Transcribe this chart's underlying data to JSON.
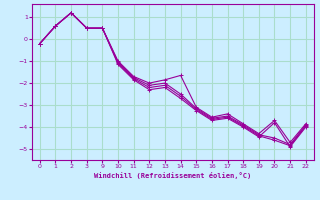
{
  "xlabel": "Windchill (Refroidissement éolien,°C)",
  "background_color": "#cceeff",
  "grid_color": "#aaddcc",
  "line_color": "#990099",
  "xlim": [
    -0.5,
    17.5
  ],
  "ylim": [
    -5.5,
    1.6
  ],
  "xtick_positions": [
    0,
    1,
    2,
    3,
    4,
    5,
    6,
    7,
    8,
    9,
    10,
    11,
    12,
    13,
    14,
    15,
    16,
    17
  ],
  "xtick_labels": [
    "0",
    "1",
    "2",
    "3",
    "9",
    "10",
    "11",
    "12",
    "13",
    "14",
    "15",
    "16",
    "17",
    "18",
    "19",
    "20",
    "21",
    "22"
  ],
  "yticks": [
    -5,
    -4,
    -3,
    -2,
    -1,
    0,
    1
  ],
  "lines": [
    {
      "xi": [
        0,
        1,
        2,
        3,
        4,
        5,
        6,
        7,
        8,
        9,
        10,
        11,
        12,
        13,
        14,
        15,
        16,
        17
      ],
      "y": [
        -0.2,
        0.6,
        1.2,
        0.5,
        0.5,
        -1.0,
        -1.7,
        -2.0,
        -1.85,
        -1.65,
        -3.1,
        -3.55,
        -3.4,
        -3.85,
        -4.3,
        -3.7,
        -4.7,
        -3.85
      ]
    },
    {
      "xi": [
        0,
        1,
        2,
        3,
        4,
        5,
        6,
        7,
        8,
        9,
        10,
        11,
        12,
        13,
        14,
        15,
        16,
        17
      ],
      "y": [
        -0.2,
        0.6,
        1.2,
        0.5,
        0.5,
        -1.05,
        -1.75,
        -2.1,
        -2.0,
        -2.5,
        -3.15,
        -3.6,
        -3.5,
        -3.9,
        -4.35,
        -4.5,
        -4.8,
        -3.9
      ]
    },
    {
      "xi": [
        0,
        1,
        2,
        3,
        4,
        5,
        6,
        7,
        8,
        9,
        10,
        11,
        12,
        13,
        14,
        15,
        16,
        17
      ],
      "y": [
        -0.2,
        0.6,
        1.2,
        0.5,
        0.5,
        -1.1,
        -1.8,
        -2.2,
        -2.1,
        -2.6,
        -3.2,
        -3.65,
        -3.55,
        -3.95,
        -4.4,
        -4.6,
        -4.85,
        -3.95
      ]
    },
    {
      "xi": [
        0,
        1,
        2,
        3,
        4,
        5,
        6,
        7,
        8,
        9,
        10,
        11,
        12,
        13,
        14,
        15,
        16,
        17
      ],
      "y": [
        -0.2,
        0.6,
        1.2,
        0.5,
        0.5,
        -1.15,
        -1.85,
        -2.3,
        -2.2,
        -2.7,
        -3.25,
        -3.7,
        -3.6,
        -4.0,
        -4.45,
        -3.8,
        -4.9,
        -4.0
      ]
    }
  ]
}
